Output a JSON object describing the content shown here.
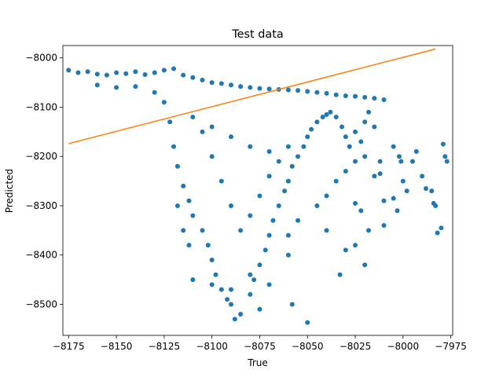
{
  "chart_data": {
    "type": "scatter",
    "title": "Test data",
    "xlabel": "True",
    "ylabel": "Predicted",
    "xlim": [
      -8178,
      -7974
    ],
    "ylim": [
      -8563,
      -7975
    ],
    "xticks": [
      -8175,
      -8150,
      -8125,
      -8100,
      -8075,
      -8050,
      -8025,
      -8000,
      -7975
    ],
    "yticks": [
      -8000,
      -8100,
      -8200,
      -8300,
      -8400,
      -8500
    ],
    "grid": false,
    "colors": {
      "scatter": "#1f77b4",
      "line": "#ff7f0e"
    },
    "series": [
      {
        "kind": "scatter",
        "description_points": [
          [
            -8175,
            -8025
          ],
          [
            -8170,
            -8030
          ],
          [
            -8165,
            -8028
          ],
          [
            -8160,
            -8033
          ],
          [
            -8155,
            -8035
          ],
          [
            -8150,
            -8030
          ],
          [
            -8145,
            -8032
          ],
          [
            -8140,
            -8028
          ],
          [
            -8135,
            -8034
          ],
          [
            -8130,
            -8030
          ],
          [
            -8125,
            -8025
          ],
          [
            -8120,
            -8022
          ],
          [
            -8115,
            -8035
          ],
          [
            -8110,
            -8040
          ],
          [
            -8105,
            -8045
          ],
          [
            -8100,
            -8050
          ],
          [
            -8095,
            -8052
          ],
          [
            -8090,
            -8055
          ],
          [
            -8085,
            -8058
          ],
          [
            -8080,
            -8060
          ],
          [
            -8075,
            -8062
          ],
          [
            -8070,
            -8063
          ],
          [
            -8065,
            -8064
          ],
          [
            -8060,
            -8065
          ],
          [
            -8055,
            -8066
          ],
          [
            -8050,
            -8068
          ],
          [
            -8045,
            -8070
          ],
          [
            -8040,
            -8072
          ],
          [
            -8035,
            -8075
          ],
          [
            -8030,
            -8077
          ],
          [
            -8025,
            -8078
          ],
          [
            -8020,
            -8080
          ],
          [
            -8015,
            -8082
          ],
          [
            -8010,
            -8085
          ],
          [
            -8160,
            -8055
          ],
          [
            -8150,
            -8060
          ],
          [
            -8140,
            -8058
          ],
          [
            -8130,
            -8070
          ],
          [
            -8125,
            -8090
          ],
          [
            -8122,
            -8130
          ],
          [
            -8120,
            -8180
          ],
          [
            -8118,
            -8220
          ],
          [
            -8115,
            -8260
          ],
          [
            -8112,
            -8290
          ],
          [
            -8110,
            -8320
          ],
          [
            -8105,
            -8350
          ],
          [
            -8102,
            -8380
          ],
          [
            -8100,
            -8410
          ],
          [
            -8098,
            -8440
          ],
          [
            -8095,
            -8470
          ],
          [
            -8092,
            -8490
          ],
          [
            -8090,
            -8500
          ],
          [
            -8088,
            -8530
          ],
          [
            -8085,
            -8520
          ],
          [
            -8080,
            -8480
          ],
          [
            -8078,
            -8450
          ],
          [
            -8075,
            -8420
          ],
          [
            -8072,
            -8390
          ],
          [
            -8070,
            -8360
          ],
          [
            -8068,
            -8330
          ],
          [
            -8065,
            -8300
          ],
          [
            -8062,
            -8270
          ],
          [
            -8060,
            -8250
          ],
          [
            -8058,
            -8220
          ],
          [
            -8055,
            -8200
          ],
          [
            -8052,
            -8180
          ],
          [
            -8050,
            -8160
          ],
          [
            -8048,
            -8145
          ],
          [
            -8045,
            -8130
          ],
          [
            -8042,
            -8120
          ],
          [
            -8040,
            -8115
          ],
          [
            -8038,
            -8110
          ],
          [
            -8035,
            -8120
          ],
          [
            -8032,
            -8140
          ],
          [
            -8030,
            -8160
          ],
          [
            -8028,
            -8180
          ],
          [
            -8025,
            -8150
          ],
          [
            -8022,
            -8170
          ],
          [
            -8020,
            -8130
          ],
          [
            -8018,
            -8110
          ],
          [
            -8015,
            -8140
          ],
          [
            -8012,
            -8210
          ],
          [
            -8010,
            -8290
          ],
          [
            -8105,
            -8150
          ],
          [
            -8100,
            -8200
          ],
          [
            -8095,
            -8250
          ],
          [
            -8090,
            -8300
          ],
          [
            -8085,
            -8350
          ],
          [
            -8080,
            -8320
          ],
          [
            -8075,
            -8280
          ],
          [
            -8070,
            -8240
          ],
          [
            -8065,
            -8210
          ],
          [
            -8060,
            -8180
          ],
          [
            -8110,
            -8120
          ],
          [
            -8100,
            -8140
          ],
          [
            -8090,
            -8160
          ],
          [
            -8080,
            -8180
          ],
          [
            -8070,
            -8190
          ],
          [
            -8058,
            -8500
          ],
          [
            -8050,
            -8537
          ],
          [
            -8060,
            -8360
          ],
          [
            -8055,
            -8330
          ],
          [
            -8045,
            -8300
          ],
          [
            -8040,
            -8280
          ],
          [
            -8035,
            -8250
          ],
          [
            -8030,
            -8230
          ],
          [
            -8025,
            -8210
          ],
          [
            -8020,
            -8200
          ],
          [
            -8040,
            -8350
          ],
          [
            -8030,
            -8390
          ],
          [
            -8025,
            -8380
          ],
          [
            -8020,
            -8420
          ],
          [
            -8033,
            -8440
          ],
          [
            -8005,
            -8180
          ],
          [
            -8000,
            -8250
          ],
          [
            -7998,
            -8270
          ],
          [
            -7995,
            -8210
          ],
          [
            -7993,
            -8190
          ],
          [
            -7990,
            -8240
          ],
          [
            -7988,
            -8265
          ],
          [
            -7985,
            -8270
          ],
          [
            -7983,
            -8300
          ],
          [
            -7982,
            -8355
          ],
          [
            -7980,
            -8345
          ],
          [
            -7978,
            -8200
          ],
          [
            -7977,
            -8210
          ],
          [
            -7979,
            -8175
          ],
          [
            -7984,
            -8295
          ],
          [
            -8001,
            -8210
          ],
          [
            -8002,
            -8200
          ],
          [
            -8012,
            -8235
          ],
          [
            -8015,
            -8240
          ],
          [
            -8005,
            -8285
          ],
          [
            -8010,
            -8340
          ],
          [
            -8003,
            -8310
          ],
          [
            -8025,
            -8295
          ],
          [
            -8018,
            -8350
          ],
          [
            -8022,
            -8310
          ],
          [
            -8060,
            -8400
          ],
          [
            -8070,
            -8460
          ],
          [
            -8080,
            -8440
          ],
          [
            -8100,
            -8460
          ],
          [
            -8110,
            -8450
          ],
          [
            -8112,
            -8380
          ],
          [
            -8115,
            -8350
          ],
          [
            -8118,
            -8300
          ],
          [
            -8090,
            -8470
          ],
          [
            -8075,
            -8510
          ]
        ]
      },
      {
        "kind": "line",
        "x": [
          -8175,
          -7983
        ],
        "y": [
          -8174,
          -7982
        ]
      }
    ]
  }
}
